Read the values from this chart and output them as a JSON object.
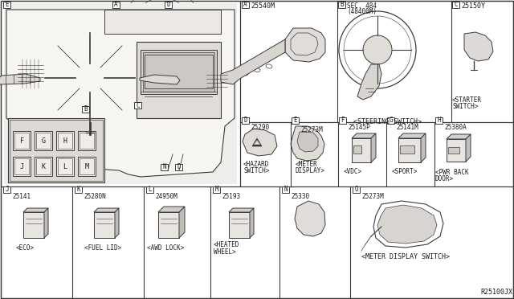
{
  "bg_color": "#f5f5f0",
  "line_color": "#3a3a3a",
  "text_color": "#1a1a1a",
  "fig_width": 6.4,
  "fig_height": 3.72,
  "dpi": 100,
  "part_ref": "R25100JX",
  "labels": {
    "A_part": "25540M",
    "B_part": "SEC. 484\n(48400M)",
    "B_desc": "<STEERING SWITCH>",
    "C_part": "25150Y",
    "C_desc": "<STARTER\nSWITCH>",
    "D_part": "25290",
    "D_desc": "<HAZARD\nSWITCH>",
    "E_part": "25273M",
    "E_desc": "<METER\nDISPLAY>",
    "F_part": "25145P",
    "F_desc": "<VDC>",
    "G_part": "25141M",
    "G_desc": "<SPORT>",
    "H_part": "25380A",
    "H_desc": "<PWR BACK\nDOOR>",
    "J_part": "25141",
    "J_desc": "<ECO>",
    "K_part": "25280N",
    "K_desc": "<FUEL LID>",
    "L_part": "24950M",
    "L_desc": "<AWD LOCK>",
    "M_part": "25193",
    "M_desc": "<HEATED\nWHEEL>",
    "N_part": "25330",
    "O_part": "25273M",
    "O_desc": "<METER DISPLAY SWITCH>"
  }
}
